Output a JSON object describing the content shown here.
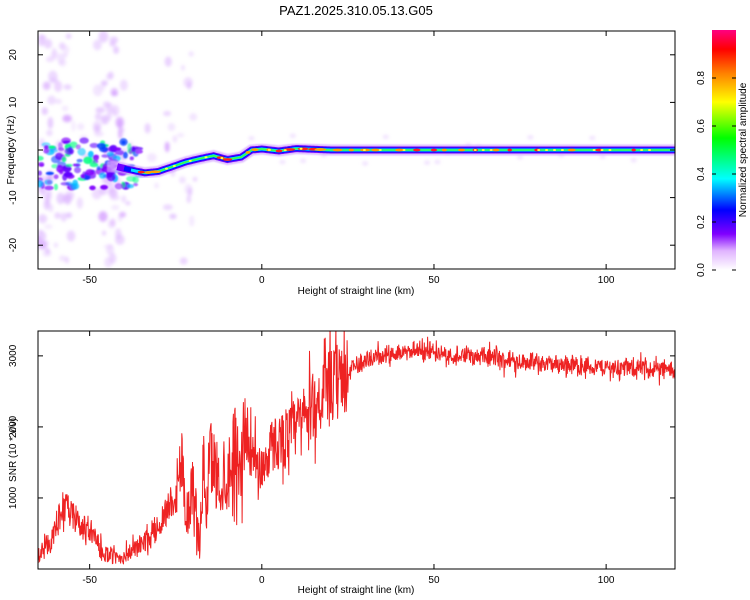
{
  "figure_title": "PAZ1.2025.310.05.13.G05",
  "chart_data": [
    {
      "type": "heatmap",
      "title": "PAZ1.2025.310.05.13.G05",
      "xlabel": "Height of straight line (km)",
      "ylabel": "Frequency (Hz)",
      "xlim": [
        -65,
        120
      ],
      "ylim": [
        -25,
        25
      ],
      "xticks": [
        -50,
        0,
        50,
        100
      ],
      "yticks": [
        -20,
        -10,
        0,
        10,
        20
      ],
      "grid": false,
      "colorbar": {
        "label": "Normalized spectral amplitude",
        "range": [
          0.0,
          1.0
        ],
        "ticks": [
          0.0,
          0.2,
          0.4,
          0.6,
          0.8
        ],
        "colormap": [
          "#ffffff",
          "#e0b3ff",
          "#8000ff",
          "#0000ff",
          "#00ffff",
          "#00ff00",
          "#ffff00",
          "#ff8000",
          "#ff0000",
          "#ff0080"
        ]
      },
      "ridge": {
        "x": [
          -42,
          -38,
          -34,
          -30,
          -26,
          -22,
          -18,
          -14,
          -10,
          -6,
          -3,
          0,
          5,
          10,
          20,
          40,
          60,
          80,
          100,
          120
        ],
        "freq": [
          -3.5,
          -4.2,
          -4.8,
          -4.5,
          -3.5,
          -2.5,
          -1.8,
          -1.2,
          -2.0,
          -1.5,
          0.0,
          0.2,
          -0.2,
          0.3,
          0.0,
          0.0,
          0.0,
          0.0,
          0.0,
          0.0
        ]
      }
    },
    {
      "type": "line",
      "xlabel": "Height of straight line (km)",
      "ylabel": "SNR (10 * v/v)",
      "xlim": [
        -65,
        120
      ],
      "ylim": [
        0,
        3350
      ],
      "xticks": [
        -50,
        0,
        50,
        100
      ],
      "yticks": [
        1000,
        2000,
        3000
      ],
      "color": "#ee2222",
      "series": [
        {
          "name": "SNR",
          "x": [
            -65,
            -62,
            -60,
            -58,
            -55,
            -53,
            -50,
            -47,
            -45,
            -42,
            -40,
            -38,
            -35,
            -32,
            -30,
            -28,
            -26,
            -24,
            -23,
            -22,
            -20,
            -18,
            -17,
            -16,
            -15,
            -12,
            -10,
            -8,
            -6,
            -5,
            -3,
            0,
            3,
            5,
            8,
            10,
            15,
            20,
            25,
            30,
            35,
            40,
            45,
            50,
            55,
            60,
            65,
            70,
            75,
            80,
            85,
            90,
            95,
            100,
            105,
            110,
            115,
            120
          ],
          "y": [
            200,
            350,
            500,
            900,
            750,
            600,
            550,
            300,
            200,
            150,
            180,
            250,
            350,
            450,
            600,
            800,
            1000,
            1300,
            1600,
            700,
            1200,
            300,
            1500,
            800,
            1600,
            1200,
            1300,
            1750,
            1400,
            2050,
            1600,
            1400,
            1750,
            1800,
            1900,
            2000,
            2300,
            2550,
            2750,
            2950,
            3000,
            3050,
            3080,
            3050,
            3020,
            3000,
            2980,
            2950,
            2930,
            2900,
            2880,
            2870,
            2850,
            2840,
            2830,
            2820,
            2810,
            2800
          ]
        }
      ]
    }
  ]
}
